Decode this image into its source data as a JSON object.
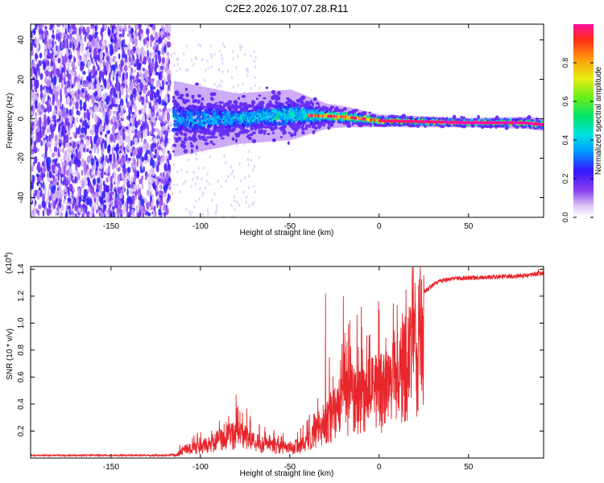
{
  "title": "C2E2.2026.107.07.28.R11",
  "chart_data": [
    {
      "type": "heatmap",
      "xlabel": "Height of straight line (km)",
      "ylabel": "Frequency (Hz)",
      "xlim": [
        -195,
        92
      ],
      "ylim": [
        -50,
        48
      ],
      "xticks": [
        -150,
        -100,
        -50,
        0,
        50
      ],
      "xtick_labels": [
        "-150",
        "-100",
        "-50",
        "0",
        "50"
      ],
      "yticks": [
        -40,
        -20,
        0,
        20,
        40
      ],
      "ytick_labels": [
        "-40",
        "-20",
        "0",
        "20",
        "40"
      ],
      "colorbar": {
        "label": "Normalized spectral amplitude",
        "range": [
          0,
          1
        ],
        "ticks": [
          0.0,
          0.2,
          0.4,
          0.6,
          0.8
        ],
        "tick_labels": [
          "0.0",
          "0.2",
          "0.4",
          "0.6",
          "0.8"
        ],
        "colormap": "rainbow (white→violet→blue→cyan→green→yellow→red)"
      },
      "features": {
        "noise_region_x": [
          -195,
          -117
        ],
        "signal_start_x": -115,
        "band_center_hz": [
          [
            -115,
            0
          ],
          [
            -80,
            0
          ],
          [
            -50,
            2
          ],
          [
            -20,
            1
          ],
          [
            0,
            -1
          ],
          [
            50,
            -2
          ],
          [
            80,
            -2
          ],
          [
            92,
            -3
          ]
        ],
        "band_halfwidth_hz": [
          [
            -115,
            12
          ],
          [
            -80,
            8
          ],
          [
            -50,
            8
          ],
          [
            -30,
            4
          ],
          [
            0,
            2
          ],
          [
            50,
            1.5
          ],
          [
            92,
            2
          ]
        ],
        "peak_amplitude_profile": [
          [
            -115,
            0.45
          ],
          [
            -60,
            0.55
          ],
          [
            -40,
            0.75
          ],
          [
            -20,
            0.95
          ],
          [
            40,
            1.0
          ],
          [
            92,
            1.0
          ]
        ]
      }
    },
    {
      "type": "line",
      "xlabel": "Height of straight line (km)",
      "ylabel": "SNR (10 * v/v)",
      "y_multiplier": "(x10^4)",
      "y_multiplier_base": "(x10",
      "y_multiplier_exp": "4",
      "y_multiplier_close": ")",
      "xlim": [
        -195,
        92
      ],
      "ylim": [
        0,
        1.42
      ],
      "xticks": [
        -150,
        -100,
        -50,
        0,
        50
      ],
      "xtick_labels": [
        "-150",
        "-100",
        "-50",
        "0",
        "50"
      ],
      "yticks": [
        0.2,
        0.4,
        0.6,
        0.8,
        1.0,
        1.2,
        1.4
      ],
      "ytick_labels": [
        "0.2",
        "0.4",
        "0.6",
        "0.8",
        "1.0",
        "1.2",
        "1.4"
      ],
      "series": [
        {
          "name": "SNR",
          "color": "#e8262b",
          "envelope": [
            [
              -195,
              0.02
            ],
            [
              -120,
              0.02
            ],
            [
              -113,
              0.03
            ],
            [
              -110,
              0.08
            ],
            [
              -100,
              0.12
            ],
            [
              -90,
              0.18
            ],
            [
              -80,
              0.25
            ],
            [
              -75,
              0.22
            ],
            [
              -70,
              0.16
            ],
            [
              -60,
              0.12
            ],
            [
              -50,
              0.1
            ],
            [
              -42,
              0.14
            ],
            [
              -38,
              0.2
            ],
            [
              -33,
              0.32
            ],
            [
              -28,
              0.42
            ],
            [
              -20,
              0.55
            ],
            [
              -15,
              0.62
            ],
            [
              -10,
              0.6
            ],
            [
              -5,
              0.65
            ],
            [
              0,
              0.68
            ],
            [
              5,
              0.72
            ],
            [
              10,
              0.8
            ],
            [
              15,
              0.95
            ],
            [
              20,
              1.1
            ],
            [
              25,
              1.23
            ],
            [
              32,
              1.3
            ],
            [
              40,
              1.33
            ],
            [
              60,
              1.34
            ],
            [
              80,
              1.35
            ],
            [
              92,
              1.37
            ]
          ],
          "spikes": [
            [
              -80,
              0.47
            ],
            [
              -30,
              1.22
            ],
            [
              -20,
              1.2
            ],
            [
              -10,
              1.12
            ],
            [
              0,
              1.1
            ],
            [
              11,
              0.35
            ],
            [
              15,
              1.25
            ],
            [
              20,
              1.3
            ],
            [
              89,
              1.4
            ]
          ]
        }
      ]
    }
  ]
}
